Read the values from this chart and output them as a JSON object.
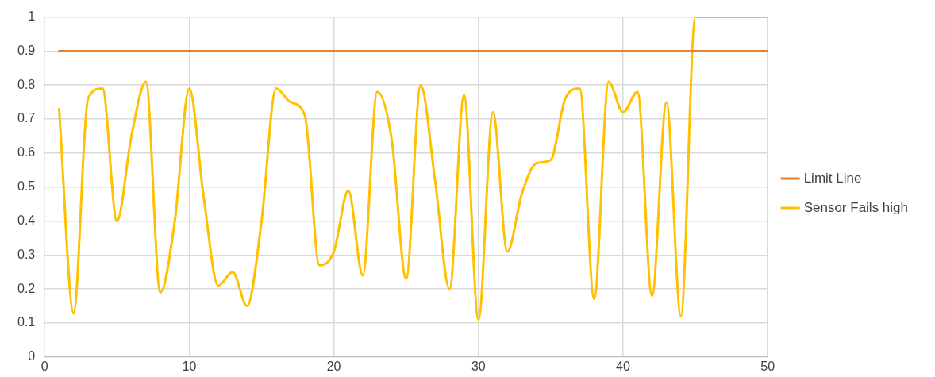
{
  "chart_data": {
    "type": "line",
    "x": [
      1,
      2,
      3,
      4,
      5,
      6,
      7,
      8,
      9,
      10,
      11,
      12,
      13,
      14,
      15,
      16,
      17,
      18,
      19,
      20,
      21,
      22,
      23,
      24,
      25,
      26,
      27,
      28,
      29,
      30,
      31,
      32,
      33,
      34,
      35,
      36,
      37,
      38,
      39,
      40,
      41,
      42,
      43,
      44,
      45,
      46,
      47,
      48,
      49,
      50
    ],
    "series": [
      {
        "name": "Limit Line",
        "color": "#ed7d31",
        "values": [
          0.9,
          0.9,
          0.9,
          0.9,
          0.9,
          0.9,
          0.9,
          0.9,
          0.9,
          0.9,
          0.9,
          0.9,
          0.9,
          0.9,
          0.9,
          0.9,
          0.9,
          0.9,
          0.9,
          0.9,
          0.9,
          0.9,
          0.9,
          0.9,
          0.9,
          0.9,
          0.9,
          0.9,
          0.9,
          0.9,
          0.9,
          0.9,
          0.9,
          0.9,
          0.9,
          0.9,
          0.9,
          0.9,
          0.9,
          0.9,
          0.9,
          0.9,
          0.9,
          0.9,
          0.9,
          0.9,
          0.9,
          0.9,
          0.9,
          0.9
        ]
      },
      {
        "name": "Sensor Fails high",
        "color": "#ffc000",
        "values": [
          0.73,
          0.13,
          0.76,
          0.79,
          0.4,
          0.65,
          0.81,
          0.19,
          0.4,
          0.79,
          0.47,
          0.21,
          0.25,
          0.15,
          0.4,
          0.79,
          0.75,
          0.71,
          0.27,
          0.31,
          0.49,
          0.24,
          0.78,
          0.64,
          0.23,
          0.8,
          0.52,
          0.2,
          0.77,
          0.11,
          0.72,
          0.31,
          0.48,
          0.57,
          0.58,
          0.76,
          0.79,
          0.17,
          0.81,
          0.72,
          0.78,
          0.18,
          0.75,
          0.12,
          1,
          1,
          1,
          1,
          1,
          1
        ]
      }
    ],
    "xlim": [
      0,
      50
    ],
    "xticks": [
      0,
      10,
      20,
      30,
      40,
      50
    ],
    "ylim": [
      0,
      1
    ],
    "yticks": [
      0,
      0.1,
      0.2,
      0.3,
      0.4,
      0.5,
      0.6,
      0.7,
      0.8,
      0.9,
      1
    ],
    "grid": true,
    "legend": "right",
    "marker": "none",
    "line_style": "solid"
  }
}
